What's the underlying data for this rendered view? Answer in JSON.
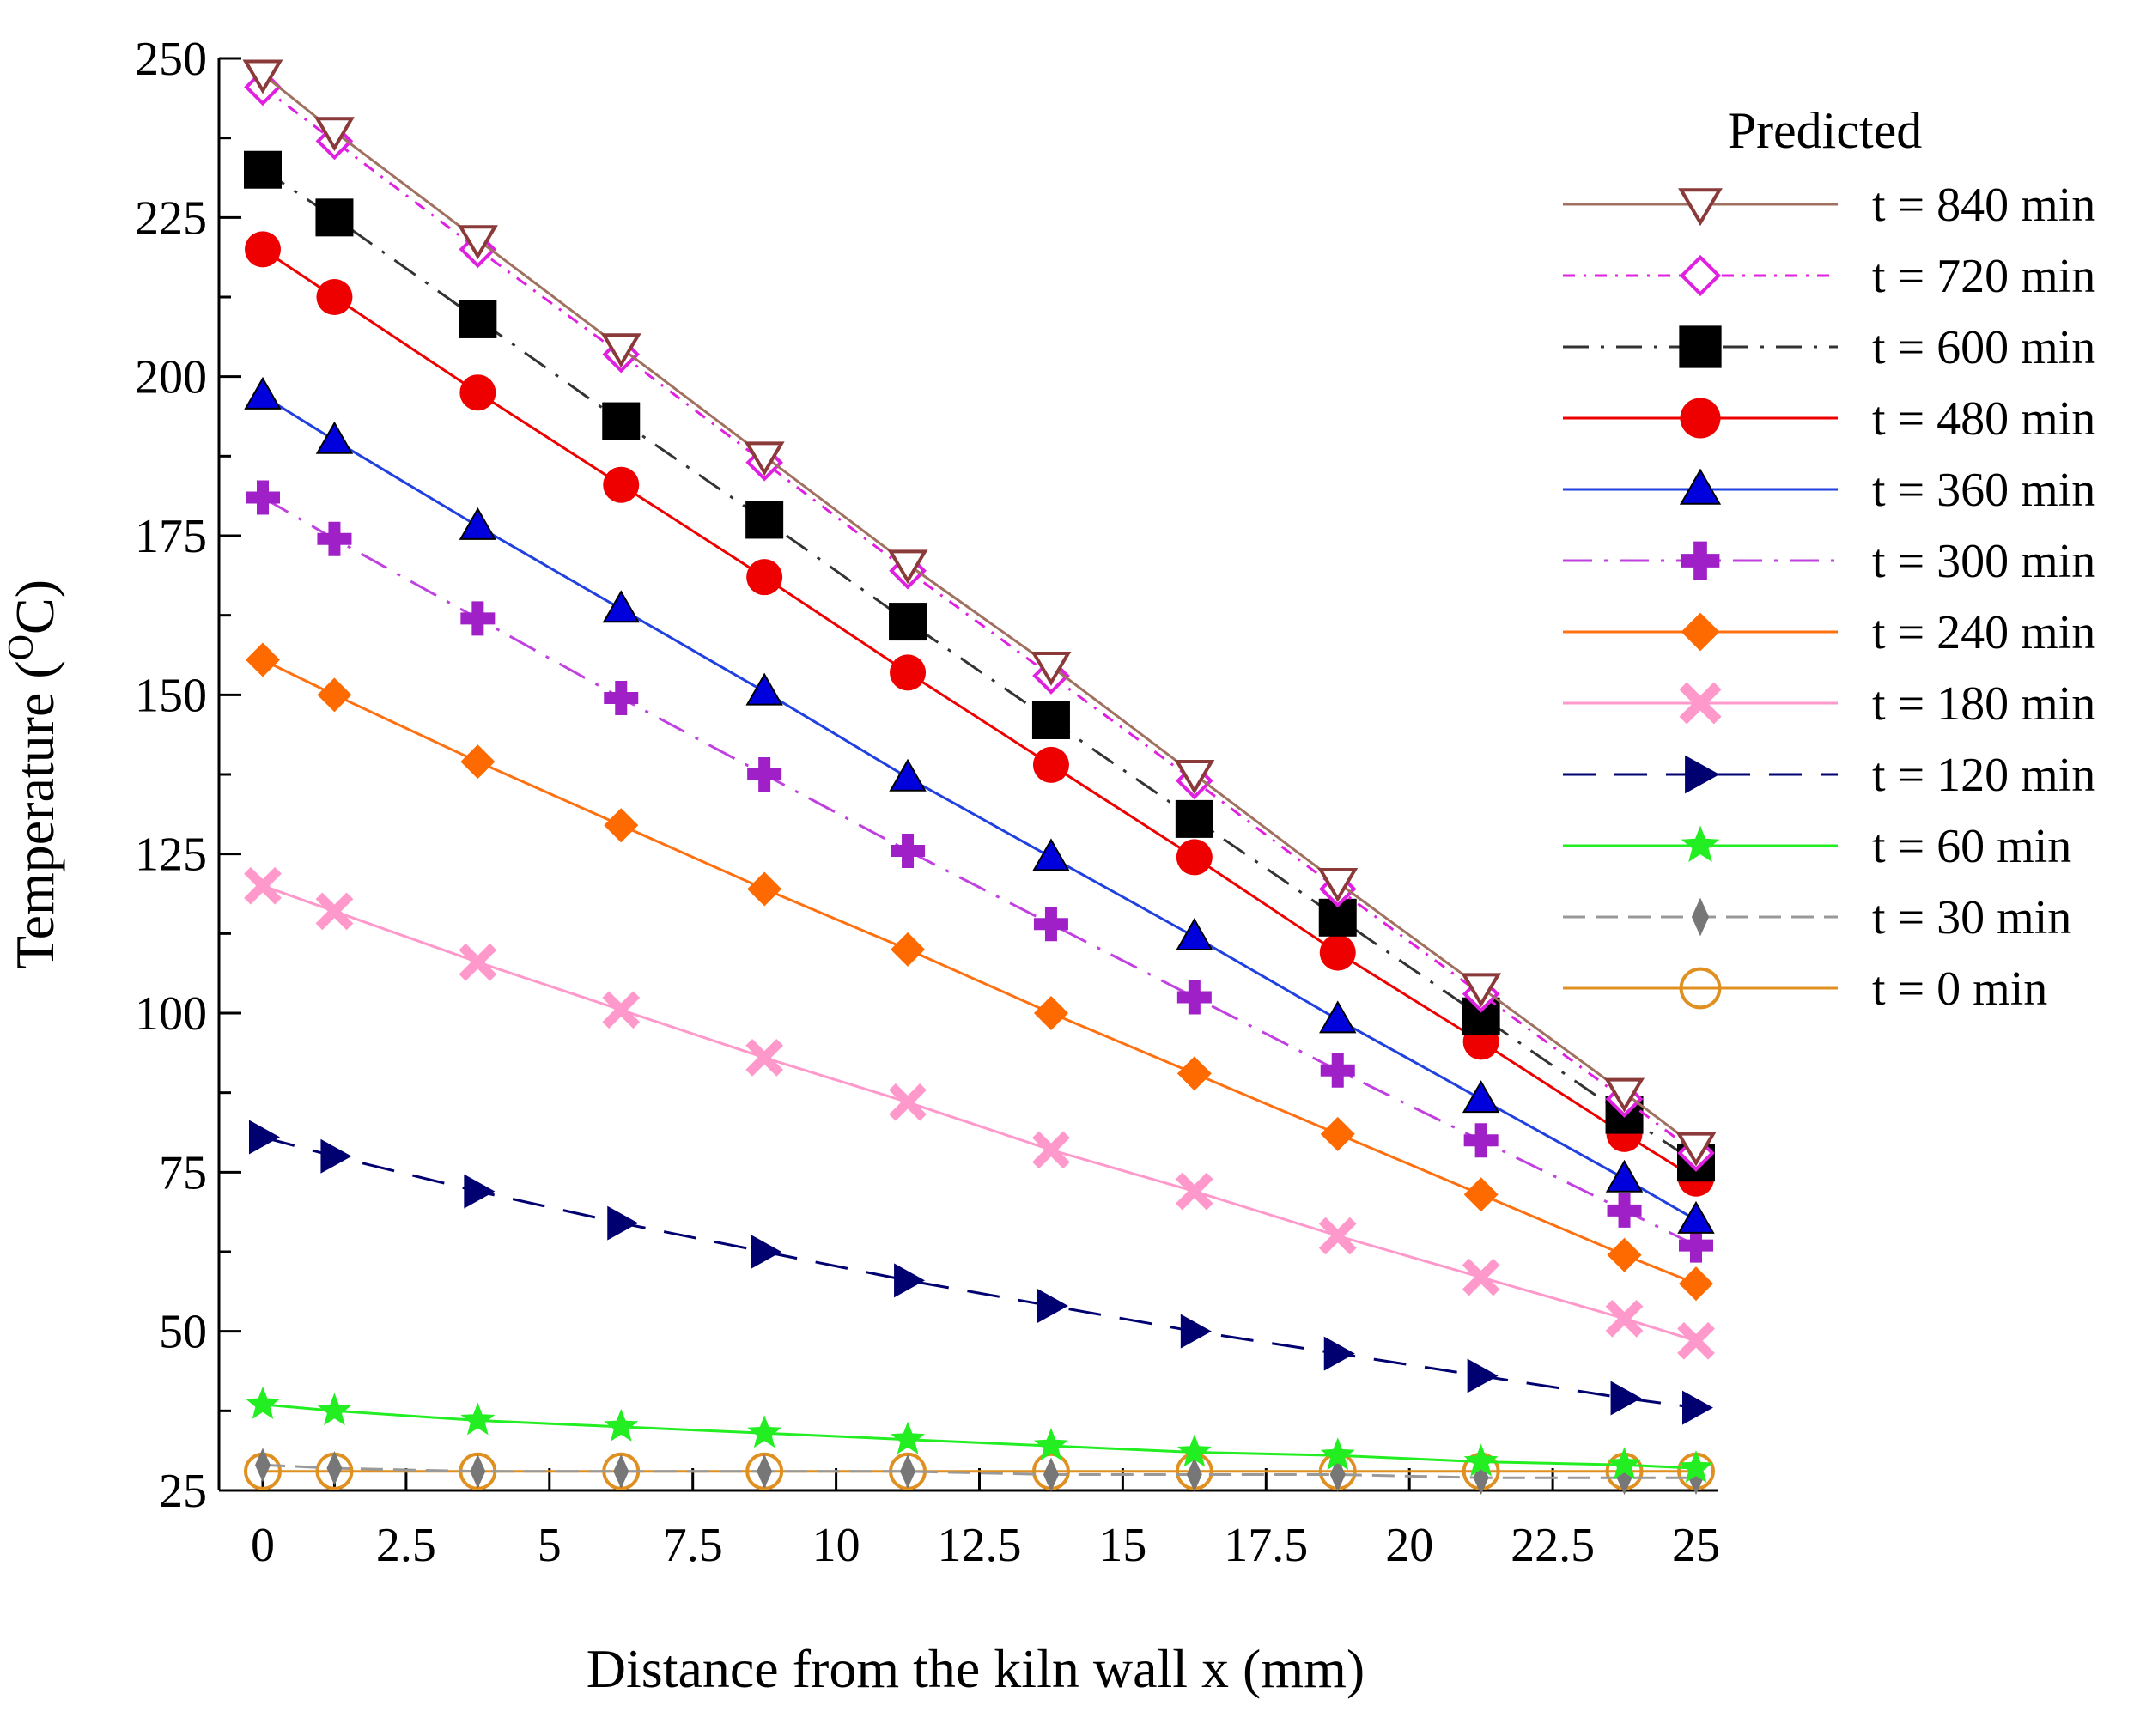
{
  "chart_data": {
    "type": "line",
    "xlabel": "Distance from the kiln wall x (mm)",
    "ylabel": "Temperature (",
    "ylabel_sup": "O",
    "ylabel_unit": "C)",
    "xlim": [
      0,
      25
    ],
    "ylim": [
      25,
      250
    ],
    "xticks": [
      "0",
      "2.5",
      "5",
      "7.5",
      "10",
      "12.5",
      "15",
      "17.5",
      "20",
      "22.5",
      "25"
    ],
    "yticks": [
      "25",
      "50",
      "75",
      "100",
      "125",
      "150",
      "175",
      "200",
      "225",
      "250"
    ],
    "legend_title": "Predicted",
    "legend_position": "right",
    "x": [
      0,
      1.25,
      3.75,
      6.25,
      8.75,
      11.25,
      13.75,
      16.25,
      18.75,
      21.25,
      23.75,
      25
    ],
    "series": [
      {
        "name": "t = 840 min",
        "color": "#8B3A3A",
        "line_color": "#A07060",
        "marker": "triangle-down-open",
        "dash": "",
        "values": [
          247.5,
          238.5,
          221.5,
          204.5,
          187.5,
          170.5,
          154.5,
          137.5,
          120.5,
          104,
          87.5,
          79
        ]
      },
      {
        "name": "t = 720 min",
        "color": "#E020E0",
        "line_color": "#E020E0",
        "marker": "diamond-open",
        "dash": "14 10 3 10",
        "values": [
          245.5,
          237,
          220,
          203.5,
          186.5,
          169.5,
          153,
          136.5,
          119.5,
          103,
          86.5,
          78
        ]
      },
      {
        "name": "t = 600 min",
        "color": "#000000",
        "line_color": "#333333",
        "marker": "square",
        "dash": "30 14 4 14",
        "values": [
          232.5,
          225,
          209,
          193,
          177.5,
          161.5,
          146,
          130.5,
          115,
          99.5,
          84,
          76.5
        ]
      },
      {
        "name": "t = 480 min",
        "color": "#EE0000",
        "line_color": "#EE0000",
        "marker": "circle",
        "dash": "",
        "values": [
          220,
          212.5,
          197.5,
          183,
          168.5,
          153.5,
          139,
          124.5,
          109.5,
          95.5,
          81,
          74
        ]
      },
      {
        "name": "t = 360 min",
        "color": "#0000DD",
        "line_color": "#2040E0",
        "marker": "triangle-up",
        "dash": "",
        "values": [
          197,
          190,
          176.5,
          163.5,
          150.5,
          137,
          124.5,
          112,
          99,
          86.5,
          74,
          67.5
        ]
      },
      {
        "name": "t = 300 min",
        "color": "#A020C8",
        "line_color": "#C040E0",
        "marker": "plus",
        "dash": "34 14 4 14",
        "values": [
          181,
          174.5,
          162,
          149.5,
          137.5,
          125.5,
          114,
          102.5,
          91,
          80,
          69,
          63.5
        ]
      },
      {
        "name": "t = 240 min",
        "color": "#FF6A00",
        "line_color": "#FF7010",
        "marker": "diamond",
        "dash": "",
        "values": [
          155.5,
          150,
          139.5,
          129.5,
          119.5,
          110,
          100,
          90.5,
          81,
          71.5,
          62,
          57.5
        ]
      },
      {
        "name": "t = 180 min",
        "color": "#FF99CC",
        "line_color": "#FF99CC",
        "marker": "x",
        "dash": "",
        "values": [
          120,
          116,
          108,
          100.5,
          93,
          86,
          78.5,
          72,
          65,
          58.5,
          52,
          48.5
        ]
      },
      {
        "name": "t = 120 min",
        "color": "#000070",
        "line_color": "#000070",
        "marker": "triangle-right",
        "dash": "38 22",
        "values": [
          80.5,
          77.5,
          72,
          67,
          62.5,
          58,
          54,
          50,
          46.5,
          43,
          39.5,
          38
        ]
      },
      {
        "name": "t = 60 min",
        "color": "#22EE22",
        "line_color": "#22EE22",
        "marker": "star",
        "dash": "",
        "values": [
          38.5,
          37.5,
          36,
          35,
          34,
          33,
          32,
          31,
          30.5,
          29.5,
          29,
          28.5
        ]
      },
      {
        "name": "t = 30 min",
        "color": "#777777",
        "line_color": "#999999",
        "marker": "thin-diamond",
        "dash": "26 12",
        "values": [
          29,
          28.5,
          28,
          28,
          28,
          28,
          27.5,
          27.5,
          27.5,
          27,
          27,
          27
        ]
      },
      {
        "name": "t = 0 min",
        "color": "#E09020",
        "line_color": "#E09020",
        "marker": "circle-open",
        "dash": "",
        "values": [
          28,
          28,
          28,
          28,
          28,
          28,
          28,
          28,
          28,
          28,
          28,
          28
        ]
      }
    ]
  }
}
